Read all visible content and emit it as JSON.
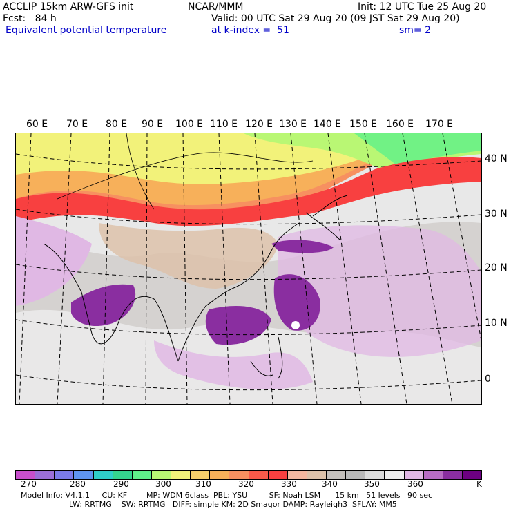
{
  "header": {
    "line1_left": "ACCLIP 15km ARW-GFS init",
    "line1_center": "NCAR/MMM",
    "line1_right": "Init: 12 UTC Tue 25 Aug 20",
    "line2_left": "Fcst:   84 h",
    "line2_right": "Valid: 00 UTC Sat 29 Aug 20 (09 JST Sat 29 Aug 20)",
    "field_name": "Equivalent potential temperature",
    "level": "at k-index =  51",
    "smoothing": "sm= 2"
  },
  "map": {
    "lon_labels": [
      "60 E",
      "70 E",
      "80 E",
      "90 E",
      "100 E",
      "110 E",
      "120 E",
      "130 E",
      "140 E",
      "150 E",
      "160 E",
      "170 E"
    ],
    "lat_labels": [
      "40 N",
      "30 N",
      "20 N",
      "10 N",
      "0"
    ]
  },
  "colorbar": {
    "colors": [
      "#c84fcc",
      "#9b6fd8",
      "#7b7be8",
      "#5f95f0",
      "#2fcfc9",
      "#35d48e",
      "#5ff08a",
      "#b9f774",
      "#f2f27a",
      "#f7d06b",
      "#f7b05a",
      "#f79060",
      "#f85a4a",
      "#f84040",
      "#f4b8a0",
      "#ddc2aa",
      "#c4c0bc",
      "#bababa",
      "#dcdcdc",
      "#eeeeee",
      "#e0b8e4",
      "#b86cc4",
      "#8a2ea0",
      "#6c0082"
    ],
    "labels": [
      "270",
      "280",
      "290",
      "300",
      "310",
      "320",
      "330",
      "340",
      "350",
      "360",
      "K"
    ]
  },
  "info": {
    "line1": "Model Info: V4.1.1     CU: KF        MP: WDM 6class  PBL: YSU         SF: Noah LSM      15 km   51 levels   90 sec",
    "line2": "LW: RRTMG    SW: RRTMG   DIFF: simple KM: 2D Smagor DAMP: Rayleigh3  SFLAY: MM5"
  }
}
